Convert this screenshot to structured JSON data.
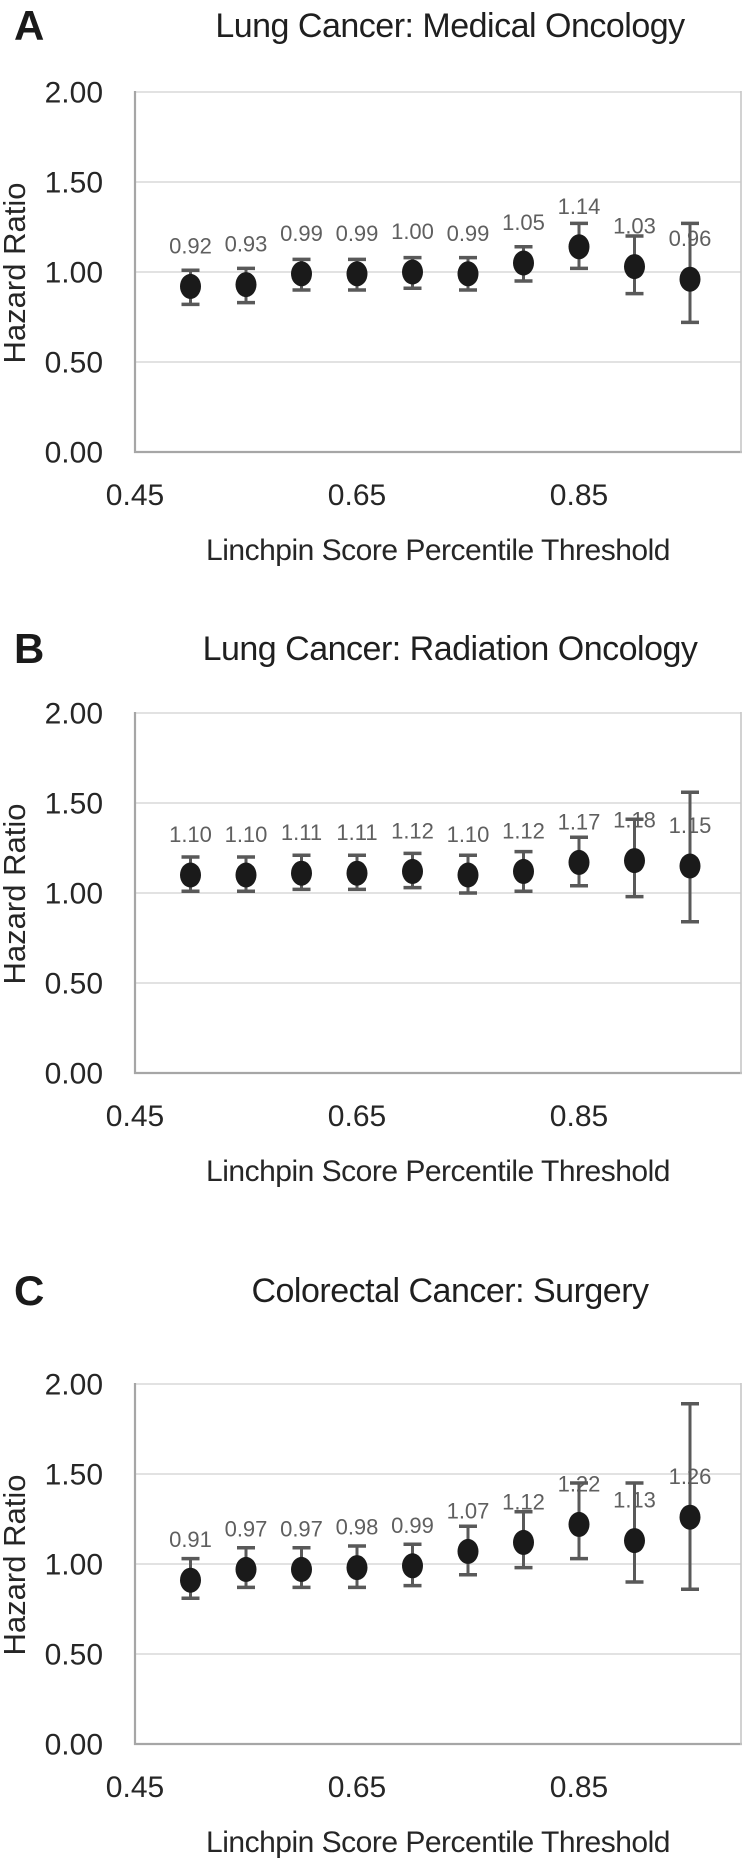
{
  "figure": {
    "ylabel": "Hazard Ratio",
    "xlabel": "Linchpin Score Percentile Threshold"
  },
  "colors": {
    "background": "#ffffff",
    "dot": "#1a1a1a",
    "error_bar": "#595959",
    "data_label": "#5f5f5f",
    "gridline": "#d9d9d9",
    "axis_border": "#a6a6a6",
    "right_border": "#c6c6c6",
    "text": "#262626",
    "title_text": "#1f1f1f"
  },
  "chart_data": [
    {
      "type": "scatter",
      "panel": "A",
      "title": "Lung Cancer: Medical Oncology",
      "xlabel": "Linchpin Score Percentile Threshold",
      "ylabel": "Hazard Ratio",
      "xlim": [
        0.45,
        0.995
      ],
      "ylim": [
        0.0,
        2.0
      ],
      "grid": true,
      "legend": "none",
      "yticks": [
        {
          "value": 2.0,
          "label": "2.00"
        },
        {
          "value": 1.5,
          "label": "1.50"
        },
        {
          "value": 1.0,
          "label": "1.00"
        },
        {
          "value": 0.5,
          "label": "0.50"
        },
        {
          "value": 0.0,
          "label": "0.00"
        }
      ],
      "xticks": [
        {
          "value": 0.45,
          "label": "0.45"
        },
        {
          "value": 0.65,
          "label": "0.65"
        },
        {
          "value": 0.85,
          "label": "0.85"
        }
      ],
      "points": [
        {
          "x": 0.5,
          "hr": 0.92,
          "ci_low": 0.82,
          "ci_high": 1.01,
          "label": "0.92"
        },
        {
          "x": 0.55,
          "hr": 0.93,
          "ci_low": 0.83,
          "ci_high": 1.02,
          "label": "0.93"
        },
        {
          "x": 0.6,
          "hr": 0.99,
          "ci_low": 0.9,
          "ci_high": 1.07,
          "label": "0.99"
        },
        {
          "x": 0.65,
          "hr": 0.99,
          "ci_low": 0.9,
          "ci_high": 1.07,
          "label": "0.99"
        },
        {
          "x": 0.7,
          "hr": 1.0,
          "ci_low": 0.91,
          "ci_high": 1.08,
          "label": "1.00"
        },
        {
          "x": 0.75,
          "hr": 0.99,
          "ci_low": 0.9,
          "ci_high": 1.08,
          "label": "0.99"
        },
        {
          "x": 0.8,
          "hr": 1.05,
          "ci_low": 0.95,
          "ci_high": 1.14,
          "label": "1.05"
        },
        {
          "x": 0.85,
          "hr": 1.14,
          "ci_low": 1.02,
          "ci_high": 1.27,
          "label": "1.14"
        },
        {
          "x": 0.9,
          "hr": 1.03,
          "ci_low": 0.88,
          "ci_high": 1.2,
          "label": "1.03"
        },
        {
          "x": 0.95,
          "hr": 0.96,
          "ci_low": 0.72,
          "ci_high": 1.27,
          "label": "0.96"
        }
      ]
    },
    {
      "type": "scatter",
      "panel": "B",
      "title": "Lung Cancer: Radiation Oncology",
      "xlabel": "Linchpin Score Percentile Threshold",
      "ylabel": "Hazard Ratio",
      "xlim": [
        0.45,
        0.995
      ],
      "ylim": [
        0.0,
        2.0
      ],
      "grid": true,
      "legend": "none",
      "yticks": [
        {
          "value": 2.0,
          "label": "2.00"
        },
        {
          "value": 1.5,
          "label": "1.50"
        },
        {
          "value": 1.0,
          "label": "1.00"
        },
        {
          "value": 0.5,
          "label": "0.50"
        },
        {
          "value": 0.0,
          "label": "0.00"
        }
      ],
      "xticks": [
        {
          "value": 0.45,
          "label": "0.45"
        },
        {
          "value": 0.65,
          "label": "0.65"
        },
        {
          "value": 0.85,
          "label": "0.85"
        }
      ],
      "points": [
        {
          "x": 0.5,
          "hr": 1.1,
          "ci_low": 1.01,
          "ci_high": 1.2,
          "label": "1.10"
        },
        {
          "x": 0.55,
          "hr": 1.1,
          "ci_low": 1.01,
          "ci_high": 1.2,
          "label": "1.10"
        },
        {
          "x": 0.6,
          "hr": 1.11,
          "ci_low": 1.02,
          "ci_high": 1.21,
          "label": "1.11"
        },
        {
          "x": 0.65,
          "hr": 1.11,
          "ci_low": 1.02,
          "ci_high": 1.21,
          "label": "1.11"
        },
        {
          "x": 0.7,
          "hr": 1.12,
          "ci_low": 1.03,
          "ci_high": 1.22,
          "label": "1.12"
        },
        {
          "x": 0.75,
          "hr": 1.1,
          "ci_low": 1.0,
          "ci_high": 1.21,
          "label": "1.10"
        },
        {
          "x": 0.8,
          "hr": 1.12,
          "ci_low": 1.01,
          "ci_high": 1.23,
          "label": "1.12"
        },
        {
          "x": 0.85,
          "hr": 1.17,
          "ci_low": 1.04,
          "ci_high": 1.31,
          "label": "1.17"
        },
        {
          "x": 0.9,
          "hr": 1.18,
          "ci_low": 0.98,
          "ci_high": 1.41,
          "label": "1.18"
        },
        {
          "x": 0.95,
          "hr": 1.15,
          "ci_low": 0.84,
          "ci_high": 1.56,
          "label": "1.15"
        }
      ]
    },
    {
      "type": "scatter",
      "panel": "C",
      "title": "Colorectal Cancer: Surgery",
      "xlabel": "Linchpin Score Percentile Threshold",
      "ylabel": "Hazard Ratio",
      "xlim": [
        0.45,
        0.995
      ],
      "ylim": [
        0.0,
        2.0
      ],
      "grid": true,
      "legend": "none",
      "yticks": [
        {
          "value": 2.0,
          "label": "2.00"
        },
        {
          "value": 1.5,
          "label": "1.50"
        },
        {
          "value": 1.0,
          "label": "1.00"
        },
        {
          "value": 0.5,
          "label": "0.50"
        },
        {
          "value": 0.0,
          "label": "0.00"
        }
      ],
      "xticks": [
        {
          "value": 0.45,
          "label": "0.45"
        },
        {
          "value": 0.65,
          "label": "0.65"
        },
        {
          "value": 0.85,
          "label": "0.85"
        }
      ],
      "points": [
        {
          "x": 0.5,
          "hr": 0.91,
          "ci_low": 0.81,
          "ci_high": 1.03,
          "label": "0.91"
        },
        {
          "x": 0.55,
          "hr": 0.97,
          "ci_low": 0.87,
          "ci_high": 1.09,
          "label": "0.97"
        },
        {
          "x": 0.6,
          "hr": 0.97,
          "ci_low": 0.87,
          "ci_high": 1.09,
          "label": "0.97"
        },
        {
          "x": 0.65,
          "hr": 0.98,
          "ci_low": 0.87,
          "ci_high": 1.1,
          "label": "0.98"
        },
        {
          "x": 0.7,
          "hr": 0.99,
          "ci_low": 0.88,
          "ci_high": 1.11,
          "label": "0.99"
        },
        {
          "x": 0.75,
          "hr": 1.07,
          "ci_low": 0.94,
          "ci_high": 1.21,
          "label": "1.07"
        },
        {
          "x": 0.8,
          "hr": 1.12,
          "ci_low": 0.98,
          "ci_high": 1.29,
          "label": "1.12"
        },
        {
          "x": 0.85,
          "hr": 1.22,
          "ci_low": 1.03,
          "ci_high": 1.45,
          "label": "1.22"
        },
        {
          "x": 0.9,
          "hr": 1.13,
          "ci_low": 0.9,
          "ci_high": 1.45,
          "label": "1.13"
        },
        {
          "x": 0.95,
          "hr": 1.26,
          "ci_low": 0.86,
          "ci_high": 1.89,
          "label": "1.26"
        }
      ]
    }
  ]
}
